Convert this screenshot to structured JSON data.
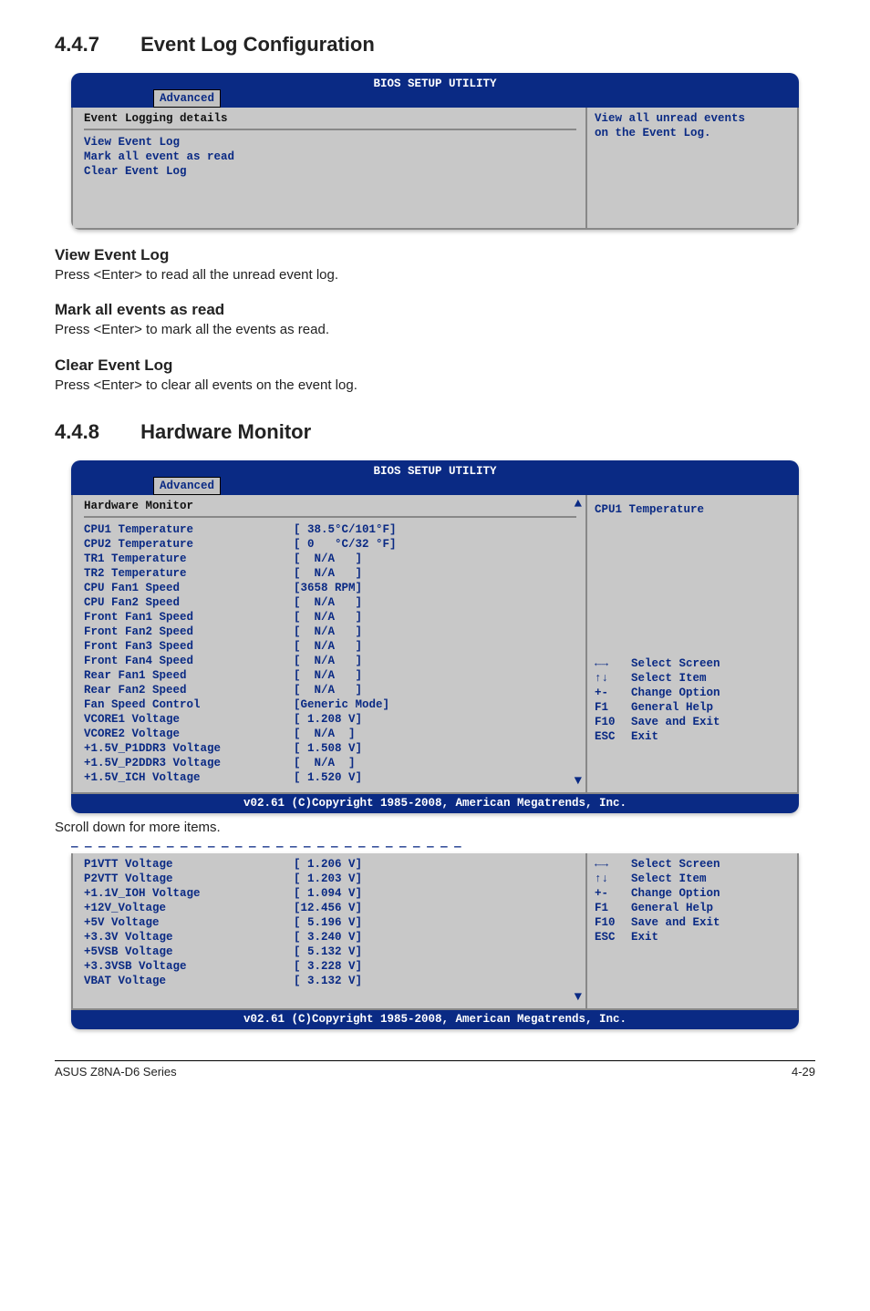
{
  "page": {
    "footer_left": "ASUS Z8NA-D6 Series",
    "footer_right": "4-29"
  },
  "sec1": {
    "num": "4.4.7",
    "title": "Event Log Configuration",
    "sub1_h": "View Event Log",
    "sub1_t": "Press <Enter> to read all the unread event log.",
    "sub2_h": "Mark all events as read",
    "sub2_t": "Press <Enter> to mark all the events as read.",
    "sub3_h": "Clear Event Log",
    "sub3_t": "Press <Enter> to clear all events on the event log."
  },
  "sec2": {
    "num": "4.4.8",
    "title": "Hardware Monitor",
    "scroll_note": "Scroll down for more items."
  },
  "bios_common": {
    "header": "BIOS SETUP UTILITY",
    "tab": "Advanced",
    "footer": "v02.61 (C)Copyright 1985-2008, American Megatrends, Inc."
  },
  "bios1": {
    "left_heading": "Event Logging details",
    "items": [
      "View Event Log",
      "Mark all event as read",
      "Clear Event Log"
    ],
    "right1": "View all unread events",
    "right2": "on the Event Log."
  },
  "bios2": {
    "left_heading": "Hardware Monitor",
    "right_top": "CPU1 Temperature",
    "rows": [
      [
        "CPU1 Temperature",
        "[ 38.5°C/101°F]"
      ],
      [
        "CPU2 Temperature",
        "[ 0   °C/32 °F]"
      ],
      [
        "TR1 Temperature",
        "[  N/A   ]"
      ],
      [
        "TR2 Temperature",
        "[  N/A   ]"
      ],
      [
        "CPU Fan1 Speed",
        "[3658 RPM]"
      ],
      [
        "CPU Fan2 Speed",
        "[  N/A   ]"
      ],
      [
        "Front Fan1 Speed",
        "[  N/A   ]"
      ],
      [
        "Front Fan2 Speed",
        "[  N/A   ]"
      ],
      [
        "Front Fan3 Speed",
        "[  N/A   ]"
      ],
      [
        "Front Fan4 Speed",
        "[  N/A   ]"
      ],
      [
        "Rear Fan1 Speed",
        "[  N/A   ]"
      ],
      [
        "Rear Fan2 Speed",
        "[  N/A   ]"
      ],
      [
        "Fan Speed Control",
        "[Generic Mode]"
      ],
      [
        "VCORE1 Voltage",
        "[ 1.208 V]"
      ],
      [
        "VCORE2 Voltage",
        "[  N/A  ]"
      ],
      [
        "+1.5V_P1DDR3 Voltage",
        "[ 1.508 V]"
      ],
      [
        "+1.5V_P2DDR3 Voltage",
        "[  N/A  ]"
      ],
      [
        "+1.5V_ICH Voltage",
        "[ 1.520 V]"
      ]
    ],
    "help": [
      [
        "←→",
        "Select Screen"
      ],
      [
        "↑↓",
        "Select Item"
      ],
      [
        "+-",
        "Change Option"
      ],
      [
        "F1",
        "General Help"
      ],
      [
        "F10",
        "Save and Exit"
      ],
      [
        "ESC",
        "Exit"
      ]
    ]
  },
  "bios3": {
    "rows": [
      [
        "P1VTT Voltage",
        "[ 1.206 V]"
      ],
      [
        "P2VTT Voltage",
        "[ 1.203 V]"
      ],
      [
        "+1.1V_IOH Voltage",
        "[ 1.094 V]"
      ],
      [
        "+12V_Voltage",
        "[12.456 V]"
      ],
      [
        "+5V Voltage",
        "[ 5.196 V]"
      ],
      [
        "+3.3V Voltage",
        "[ 3.240 V]"
      ],
      [
        "+5VSB Voltage",
        "[ 5.132 V]"
      ],
      [
        "+3.3VSB Voltage",
        "[ 3.228 V]"
      ],
      [
        "VBAT Voltage",
        "[ 3.132 V]"
      ]
    ],
    "help": [
      [
        "←→",
        "Select Screen"
      ],
      [
        "↑↓",
        "Select Item"
      ],
      [
        "+-",
        "Change Option"
      ],
      [
        "F1",
        "General Help"
      ],
      [
        "F10",
        "Save and Exit"
      ],
      [
        "ESC",
        "Exit"
      ]
    ]
  }
}
